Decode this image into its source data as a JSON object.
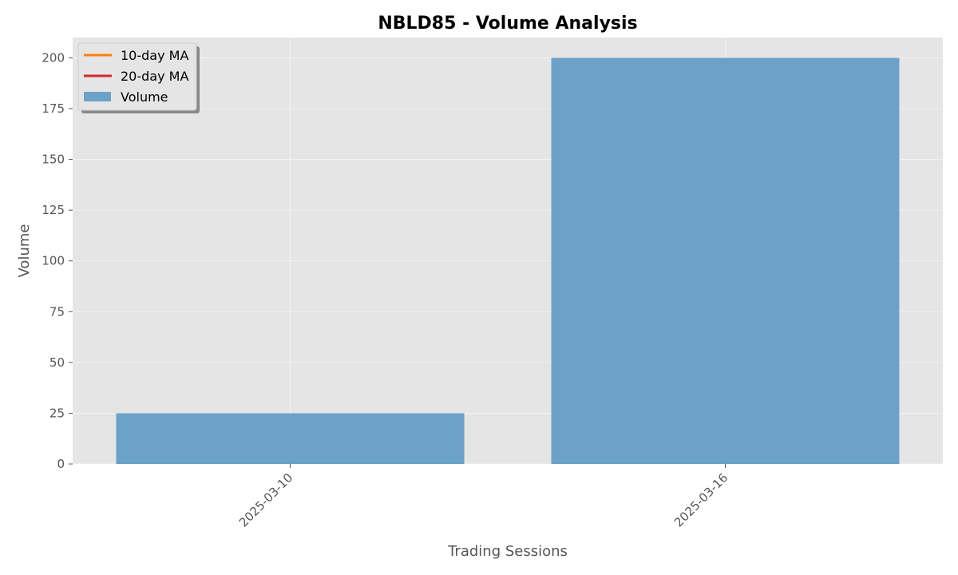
{
  "chart_data": {
    "type": "bar",
    "title": "NBLD85 - Volume Analysis",
    "xlabel": "Trading Sessions",
    "ylabel": "Volume",
    "categories": [
      "2025-03-10",
      "2025-03-16"
    ],
    "series": [
      {
        "name": "Volume",
        "values": [
          25,
          200
        ],
        "color": "#6ca2c8"
      }
    ],
    "lines": [
      {
        "name": "10-day MA",
        "values": [],
        "color": "#ff7f0e"
      },
      {
        "name": "20-day MA",
        "values": [],
        "color": "#d62728"
      }
    ],
    "ylim": [
      0,
      210
    ],
    "yticks": [
      0,
      25,
      50,
      75,
      100,
      125,
      150,
      175,
      200
    ],
    "grid": true,
    "legend_position": "top-left",
    "plot_background": "#e5e5e5"
  }
}
